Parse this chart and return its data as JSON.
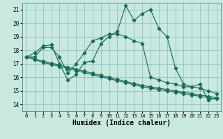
{
  "xlabel": "Humidex (Indice chaleur)",
  "xlim": [
    -0.5,
    23.5
  ],
  "ylim": [
    13.5,
    21.5
  ],
  "yticks": [
    14,
    15,
    16,
    17,
    18,
    19,
    20,
    21
  ],
  "xticks": [
    0,
    1,
    2,
    3,
    4,
    5,
    6,
    7,
    8,
    9,
    10,
    11,
    12,
    13,
    14,
    15,
    16,
    17,
    18,
    19,
    20,
    21,
    22,
    23
  ],
  "bg_color": "#c8e8e0",
  "grid_color": "#88bbbb",
  "line_color": "#1a6b5a",
  "series1": [
    17.5,
    17.8,
    18.3,
    18.4,
    17.0,
    15.8,
    16.2,
    17.1,
    17.2,
    18.5,
    19.0,
    19.4,
    21.3,
    20.2,
    20.7,
    21.0,
    19.6,
    19.0,
    16.7,
    15.5,
    15.3,
    15.5,
    14.3,
    14.5
  ],
  "series2": [
    17.5,
    17.5,
    18.2,
    18.2,
    17.5,
    16.3,
    17.0,
    17.8,
    18.7,
    18.9,
    19.2,
    19.2,
    19.0,
    18.7,
    18.5,
    16.0,
    15.8,
    15.6,
    15.5,
    15.3,
    15.3,
    15.2,
    15.0,
    14.8
  ],
  "series3": [
    17.5,
    17.3,
    17.1,
    16.95,
    16.8,
    16.65,
    16.5,
    16.35,
    16.2,
    16.05,
    15.9,
    15.75,
    15.6,
    15.45,
    15.3,
    15.2,
    15.1,
    15.0,
    14.9,
    14.8,
    14.7,
    14.6,
    14.5,
    14.4
  ],
  "series4": [
    17.5,
    17.35,
    17.2,
    17.05,
    16.9,
    16.75,
    16.6,
    16.45,
    16.3,
    16.15,
    16.0,
    15.85,
    15.7,
    15.55,
    15.4,
    15.3,
    15.2,
    15.1,
    15.0,
    14.9,
    14.8,
    14.7,
    14.6,
    14.5
  ]
}
